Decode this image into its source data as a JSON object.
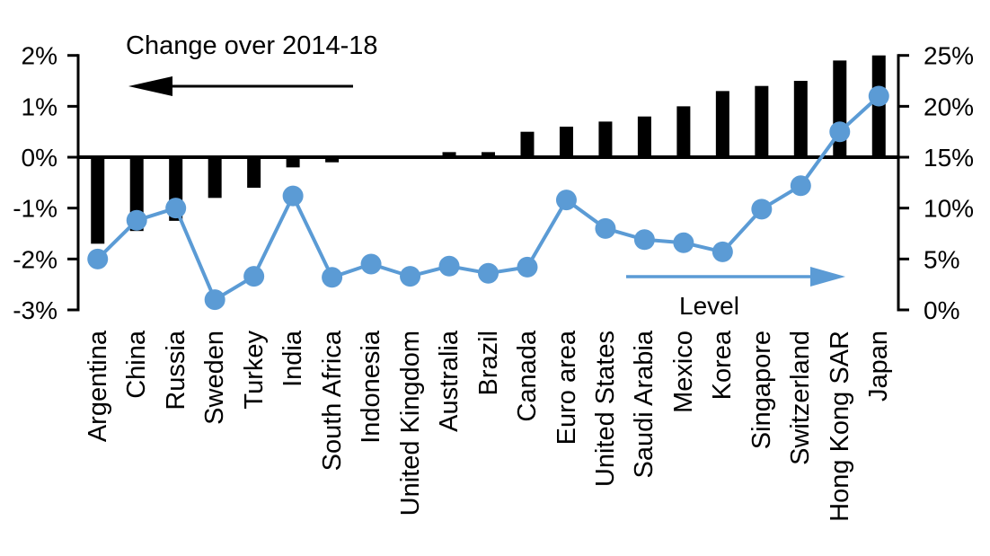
{
  "chart_data": {
    "type": "combo",
    "title": "Change over 2014-18",
    "categories": [
      "Argentina",
      "China",
      "Russia",
      "Sweden",
      "Turkey",
      "India",
      "South Africa",
      "Indonesia",
      "United Kingdom",
      "Australia",
      "Brazil",
      "Canada",
      "Euro area",
      "United States",
      "Saudi Arabia",
      "Mexico",
      "Korea",
      "Singapore",
      "Switzerland",
      "Hong Kong SAR",
      "Japan"
    ],
    "series": [
      {
        "name": "Change over 2014-18",
        "type": "bar",
        "axis": "left",
        "values": [
          -1.7,
          -1.45,
          -1.25,
          -0.8,
          -0.6,
          -0.2,
          -0.1,
          0,
          0,
          0.1,
          0.1,
          0.5,
          0.6,
          0.7,
          0.8,
          1.0,
          1.3,
          1.4,
          1.5,
          1.9,
          2.0
        ]
      },
      {
        "name": "Level",
        "type": "line",
        "axis": "right",
        "values": [
          5.0,
          8.8,
          10.0,
          1.0,
          3.3,
          11.2,
          3.2,
          4.5,
          3.3,
          4.3,
          3.6,
          4.2,
          10.8,
          8.0,
          6.9,
          6.6,
          5.7,
          9.9,
          12.2,
          17.5,
          21.0
        ]
      }
    ],
    "left_axis": {
      "min": -3,
      "max": 2,
      "tick_values": [
        2,
        1,
        0,
        -1,
        -2,
        -3
      ],
      "ticks": [
        "2%",
        "1%",
        "0%",
        "-1%",
        "-2%",
        "-3%"
      ]
    },
    "right_axis": {
      "min": 0,
      "max": 25,
      "tick_values": [
        25,
        20,
        15,
        10,
        5,
        0
      ],
      "ticks": [
        "25%",
        "20%",
        "15%",
        "10%",
        "5%",
        "0%"
      ]
    },
    "grid": false,
    "legend_position": "in-plot-annotations",
    "colors": {
      "bar": "#000000",
      "line": "#5B9BD5"
    },
    "annotations": [
      {
        "text": "Change over 2014-18",
        "arrow": "left",
        "color": "#000000"
      },
      {
        "text": "Level",
        "arrow": "right",
        "color": "#5B9BD5"
      }
    ]
  }
}
